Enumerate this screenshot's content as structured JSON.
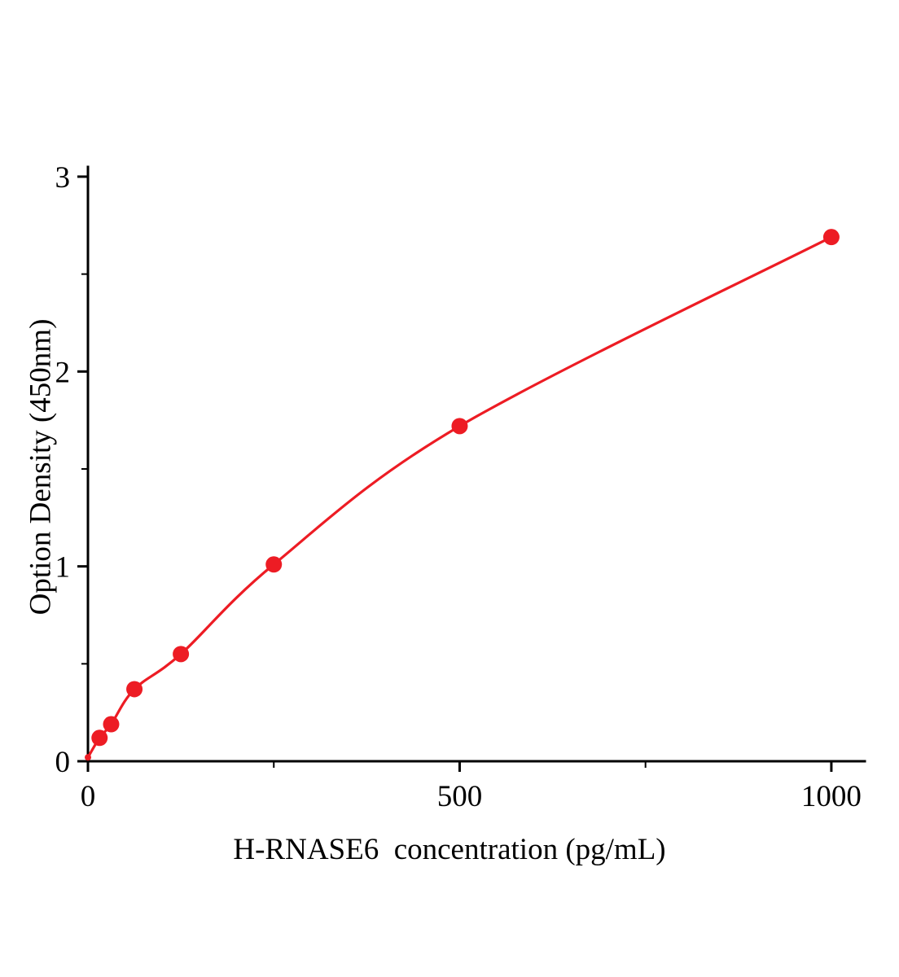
{
  "chart_data": {
    "type": "scatter",
    "title": "",
    "xlabel": "H-RNASE6  concentration (pg/mL)",
    "ylabel": "Option Density (450nm)",
    "x": [
      0,
      15.6,
      31.2,
      62.5,
      125,
      250,
      500,
      1000
    ],
    "y": [
      0.02,
      0.12,
      0.19,
      0.37,
      0.55,
      1.01,
      1.72,
      2.69
    ],
    "xlim": [
      0,
      1045
    ],
    "ylim": [
      0,
      3.05
    ],
    "x_major_ticks": [
      0,
      500,
      1000
    ],
    "x_minor_ticks": [
      250,
      750
    ],
    "y_major_ticks": [
      0,
      1,
      2,
      3
    ],
    "y_minor_ticks": [
      0.5,
      1.5,
      2.5
    ],
    "grid": "off",
    "legend": "none",
    "line_color": "#ed1c24",
    "marker_color": "#ed1c24",
    "axis_color": "#000000"
  }
}
